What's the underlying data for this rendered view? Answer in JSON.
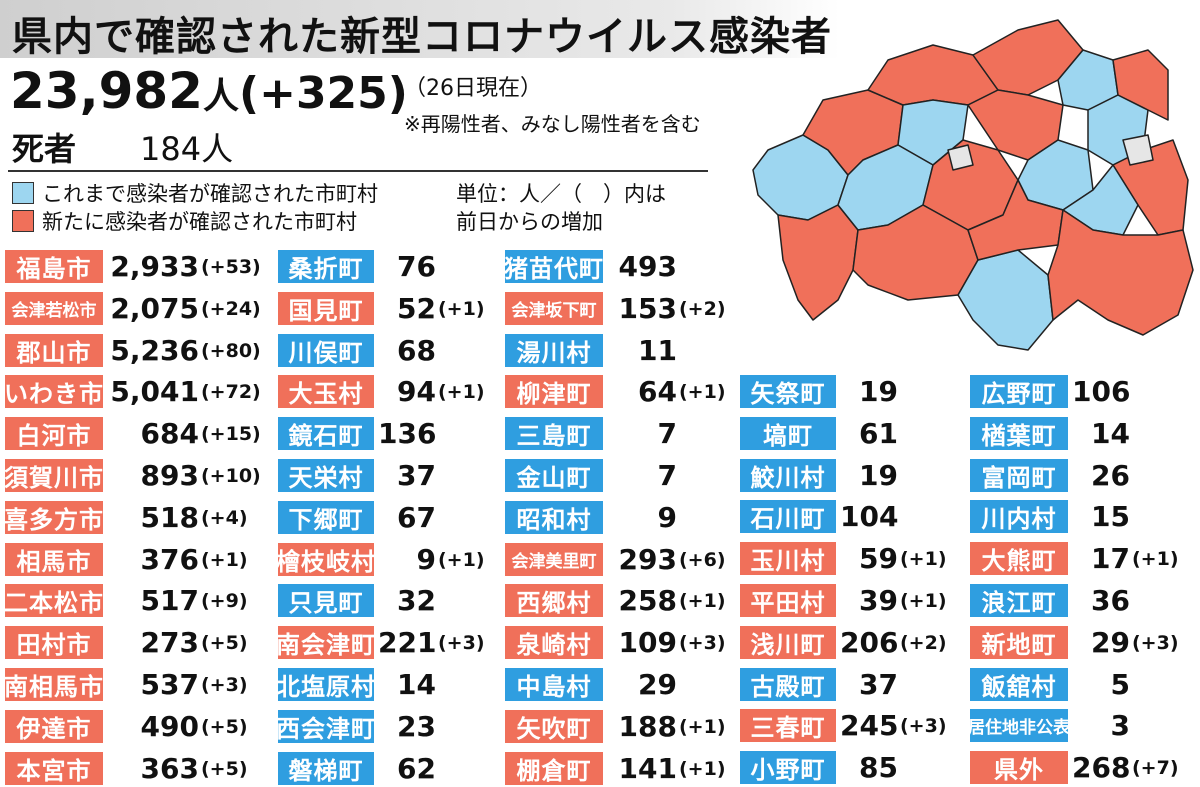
{
  "title": "県内で確認された新型コロナウイルス感染者",
  "total": {
    "count": "23,982",
    "unit": "人",
    "delta": "(+325)"
  },
  "as_of": "（26日現在）",
  "note": "※再陽性者、みなし陽性者を含む",
  "deaths": {
    "label": "死者",
    "value": "184人"
  },
  "legend": {
    "existing": "これまで感染者が確認された市町村",
    "new": "新たに感染者が確認された市町村",
    "unit_line1": "単位：人／（　）内は",
    "unit_line2": "前日からの増加"
  },
  "colors": {
    "new": "#f0705a",
    "existing": "#2f9ee0",
    "map_existing": "#9dd6f0",
    "map_none": "#e6e6e6"
  },
  "columns": [
    [
      {
        "name": "福島市",
        "value": "2,933",
        "delta": "(+53)",
        "status": "new"
      },
      {
        "name": "会津若松市",
        "value": "2,075",
        "delta": "(+24)",
        "status": "new"
      },
      {
        "name": "郡山市",
        "value": "5,236",
        "delta": "(+80)",
        "status": "new"
      },
      {
        "name": "いわき市",
        "value": "5,041",
        "delta": "(+72)",
        "status": "new"
      },
      {
        "name": "白河市",
        "value": "684",
        "delta": "(+15)",
        "status": "new"
      },
      {
        "name": "須賀川市",
        "value": "893",
        "delta": "(+10)",
        "status": "new"
      },
      {
        "name": "喜多方市",
        "value": "518",
        "delta": "(+4)",
        "status": "new"
      },
      {
        "name": "相馬市",
        "value": "376",
        "delta": "(+1)",
        "status": "new"
      },
      {
        "name": "二本松市",
        "value": "517",
        "delta": "(+9)",
        "status": "new"
      },
      {
        "name": "田村市",
        "value": "273",
        "delta": "(+5)",
        "status": "new"
      },
      {
        "name": "南相馬市",
        "value": "537",
        "delta": "(+3)",
        "status": "new"
      },
      {
        "name": "伊達市",
        "value": "490",
        "delta": "(+5)",
        "status": "new"
      },
      {
        "name": "本宮市",
        "value": "363",
        "delta": "(+5)",
        "status": "new"
      }
    ],
    [
      {
        "name": "桑折町",
        "value": "76",
        "delta": "",
        "status": "existing"
      },
      {
        "name": "国見町",
        "value": "52",
        "delta": "(+1)",
        "status": "new"
      },
      {
        "name": "川俣町",
        "value": "68",
        "delta": "",
        "status": "existing"
      },
      {
        "name": "大玉村",
        "value": "94",
        "delta": "(+1)",
        "status": "new"
      },
      {
        "name": "鏡石町",
        "value": "136",
        "delta": "",
        "status": "existing"
      },
      {
        "name": "天栄村",
        "value": "37",
        "delta": "",
        "status": "existing"
      },
      {
        "name": "下郷町",
        "value": "67",
        "delta": "",
        "status": "existing"
      },
      {
        "name": "檜枝岐村",
        "value": "9",
        "delta": "(+1)",
        "status": "new"
      },
      {
        "name": "只見町",
        "value": "32",
        "delta": "",
        "status": "existing"
      },
      {
        "name": "南会津町",
        "value": "221",
        "delta": "(+3)",
        "status": "new"
      },
      {
        "name": "北塩原村",
        "value": "14",
        "delta": "",
        "status": "existing"
      },
      {
        "name": "西会津町",
        "value": "23",
        "delta": "",
        "status": "existing"
      },
      {
        "name": "磐梯町",
        "value": "62",
        "delta": "",
        "status": "existing"
      }
    ],
    [
      {
        "name": "猪苗代町",
        "value": "493",
        "delta": "",
        "status": "existing"
      },
      {
        "name": "会津坂下町",
        "value": "153",
        "delta": "(+2)",
        "status": "new"
      },
      {
        "name": "湯川村",
        "value": "11",
        "delta": "",
        "status": "existing"
      },
      {
        "name": "柳津町",
        "value": "64",
        "delta": "(+1)",
        "status": "new"
      },
      {
        "name": "三島町",
        "value": "7",
        "delta": "",
        "status": "existing"
      },
      {
        "name": "金山町",
        "value": "7",
        "delta": "",
        "status": "existing"
      },
      {
        "name": "昭和村",
        "value": "9",
        "delta": "",
        "status": "existing"
      },
      {
        "name": "会津美里町",
        "value": "293",
        "delta": "(+6)",
        "status": "new"
      },
      {
        "name": "西郷村",
        "value": "258",
        "delta": "(+1)",
        "status": "new"
      },
      {
        "name": "泉崎村",
        "value": "109",
        "delta": "(+3)",
        "status": "new"
      },
      {
        "name": "中島村",
        "value": "29",
        "delta": "",
        "status": "existing"
      },
      {
        "name": "矢吹町",
        "value": "188",
        "delta": "(+1)",
        "status": "new"
      },
      {
        "name": "棚倉町",
        "value": "141",
        "delta": "(+1)",
        "status": "new"
      }
    ],
    [
      {
        "name": "矢祭町",
        "value": "19",
        "delta": "",
        "status": "existing"
      },
      {
        "name": "塙町",
        "value": "61",
        "delta": "",
        "status": "existing"
      },
      {
        "name": "鮫川村",
        "value": "19",
        "delta": "",
        "status": "existing"
      },
      {
        "name": "石川町",
        "value": "104",
        "delta": "",
        "status": "existing"
      },
      {
        "name": "玉川村",
        "value": "59",
        "delta": "(+1)",
        "status": "new"
      },
      {
        "name": "平田村",
        "value": "39",
        "delta": "(+1)",
        "status": "new"
      },
      {
        "name": "浅川町",
        "value": "206",
        "delta": "(+2)",
        "status": "new"
      },
      {
        "name": "古殿町",
        "value": "37",
        "delta": "",
        "status": "existing"
      },
      {
        "name": "三春町",
        "value": "245",
        "delta": "(+3)",
        "status": "new"
      },
      {
        "name": "小野町",
        "value": "85",
        "delta": "",
        "status": "existing"
      }
    ],
    [
      {
        "name": "広野町",
        "value": "106",
        "delta": "",
        "status": "existing"
      },
      {
        "name": "楢葉町",
        "value": "14",
        "delta": "",
        "status": "existing"
      },
      {
        "name": "富岡町",
        "value": "26",
        "delta": "",
        "status": "existing"
      },
      {
        "name": "川内村",
        "value": "15",
        "delta": "",
        "status": "existing"
      },
      {
        "name": "大熊町",
        "value": "17",
        "delta": "(+1)",
        "status": "new"
      },
      {
        "name": "浪江町",
        "value": "36",
        "delta": "",
        "status": "existing"
      },
      {
        "name": "新地町",
        "value": "29",
        "delta": "(+3)",
        "status": "new"
      },
      {
        "name": "飯舘村",
        "value": "5",
        "delta": "",
        "status": "existing"
      },
      {
        "name": "居住地非公表",
        "value": "3",
        "delta": "",
        "status": "existing"
      },
      {
        "name": "県外",
        "value": "268",
        "delta": "(+7)",
        "status": "new"
      }
    ]
  ]
}
